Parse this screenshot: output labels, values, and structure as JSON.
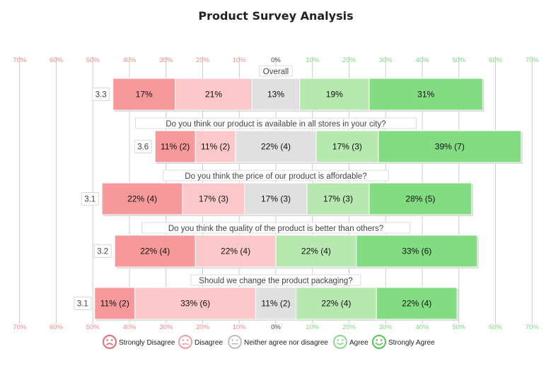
{
  "chart_data": {
    "type": "bar",
    "subtype": "diverging-stacked-likert",
    "title": "Product Survey Analysis",
    "xlim": [
      -70,
      70
    ],
    "x_ticks": [
      "70%",
      "60%",
      "50%",
      "40%",
      "30%",
      "20%",
      "10%",
      "0%",
      "10%",
      "20%",
      "30%",
      "40%",
      "50%",
      "60%",
      "70%"
    ],
    "grid": true,
    "legend_position": "bottom",
    "legend": [
      {
        "name": "Strongly Disagree",
        "color": "#f7999b",
        "icon": "sad-face-icon"
      },
      {
        "name": "Disagree",
        "color": "#fcc8c9",
        "icon": "frown-face-icon"
      },
      {
        "name": "Neither agree nor disagree",
        "color": "#e0e0e0",
        "icon": "neutral-face-icon"
      },
      {
        "name": "Agree",
        "color": "#b6e8b0",
        "icon": "smile-face-icon"
      },
      {
        "name": "Strongly Agree",
        "color": "#82dc82",
        "icon": "happy-face-icon"
      }
    ],
    "rows": [
      {
        "question": "Overall",
        "mean": "3.3",
        "values": [
          17,
          21,
          13,
          19,
          31
        ],
        "labels": [
          "17%",
          "21%",
          "13%",
          "19%",
          "31%"
        ]
      },
      {
        "question": "Do you think our product is available in all stores in your city?",
        "mean": "3.6",
        "values": [
          11,
          11,
          22,
          17,
          39
        ],
        "labels": [
          "11% (2)",
          "11% (2)",
          "22% (4)",
          "17% (3)",
          "39% (7)"
        ]
      },
      {
        "question": "Do you think the price of our product is affordable?",
        "mean": "3.1",
        "values": [
          22,
          17,
          17,
          17,
          28
        ],
        "labels": [
          "22% (4)",
          "17% (3)",
          "17% (3)",
          "17% (3)",
          "28% (5)"
        ]
      },
      {
        "question": "Do you think the quality of the product is better than others?",
        "mean": "3.2",
        "values": [
          22,
          22,
          0,
          22,
          33
        ],
        "labels": [
          "22% (4)",
          "22% (4)",
          "",
          "22% (4)",
          "33% (6)"
        ]
      },
      {
        "question": "Should we change the product packaging?",
        "mean": "3.1",
        "values": [
          11,
          33,
          11,
          22,
          22
        ],
        "labels": [
          "11% (2)",
          "33% (6)",
          "11% (2)",
          "22% (4)",
          "22% (4)"
        ]
      }
    ]
  },
  "colors": {
    "negative_tick": "#f08a8a",
    "positive_tick": "#7fd67f",
    "zero_tick": "#444444",
    "grid": "#cccccc"
  }
}
